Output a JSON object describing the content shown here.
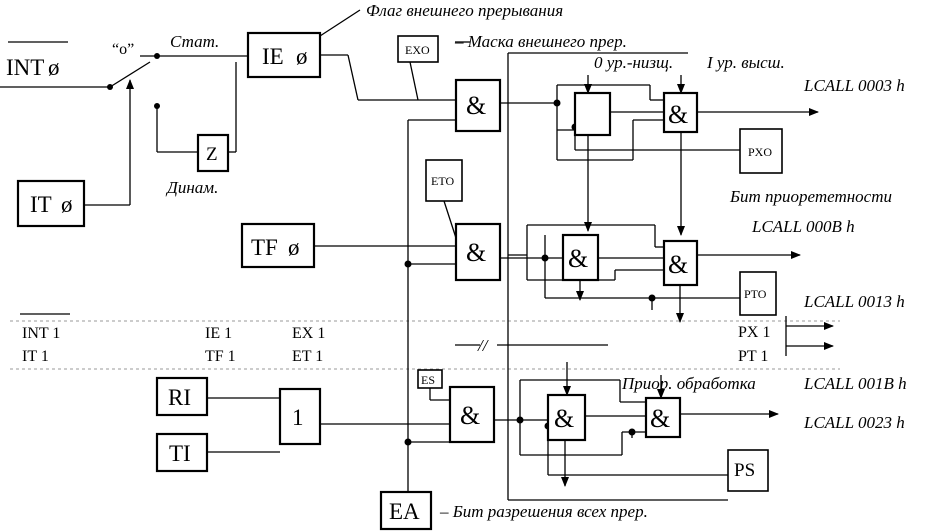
{
  "blocks": {
    "int0": "INT",
    "it0": "IT",
    "ie0": "IE",
    "z": "Z",
    "ex0": "EXO",
    "et0": "ETO",
    "tf0": "TF",
    "px0": "PXO",
    "pt0": "PTO",
    "es": "ES",
    "ri": "RI",
    "ti": "TI",
    "or_gate": "1",
    "ps": "PS",
    "ea": "EA",
    "and_gate": "&",
    "zero_symbol": "ø",
    "switch_state": "“о”"
  },
  "labels": {
    "flag": "Флаг внешнего прерывания",
    "stat": "Стат.",
    "dinam": "Динам.",
    "mask": "– Маска внешнего прер.",
    "level0": "0 ур.-низщ.",
    "level1": "I ур. высш.",
    "lcall_0003": "LCALL 0003 h",
    "priority_bit": "Бит приорететности",
    "lcall_000b": "LCALL 000B h",
    "lcall_0013": "LCALL 0013 h",
    "prior_proc": "Приор. обработка",
    "lcall_001b": "LCALL 001B h",
    "lcall_0023": "LCALL 0023 h",
    "ea_desc": "–  Бит разрешения всех прер.",
    "break_mark": "//"
  },
  "sidebar": {
    "int1": "INT 1",
    "it1": "IT 1",
    "ie1": "IE 1",
    "tf1": "TF 1",
    "ex1": "EX 1",
    "et1": "ET 1",
    "px1": "PX 1",
    "pt1": "PT 1"
  }
}
